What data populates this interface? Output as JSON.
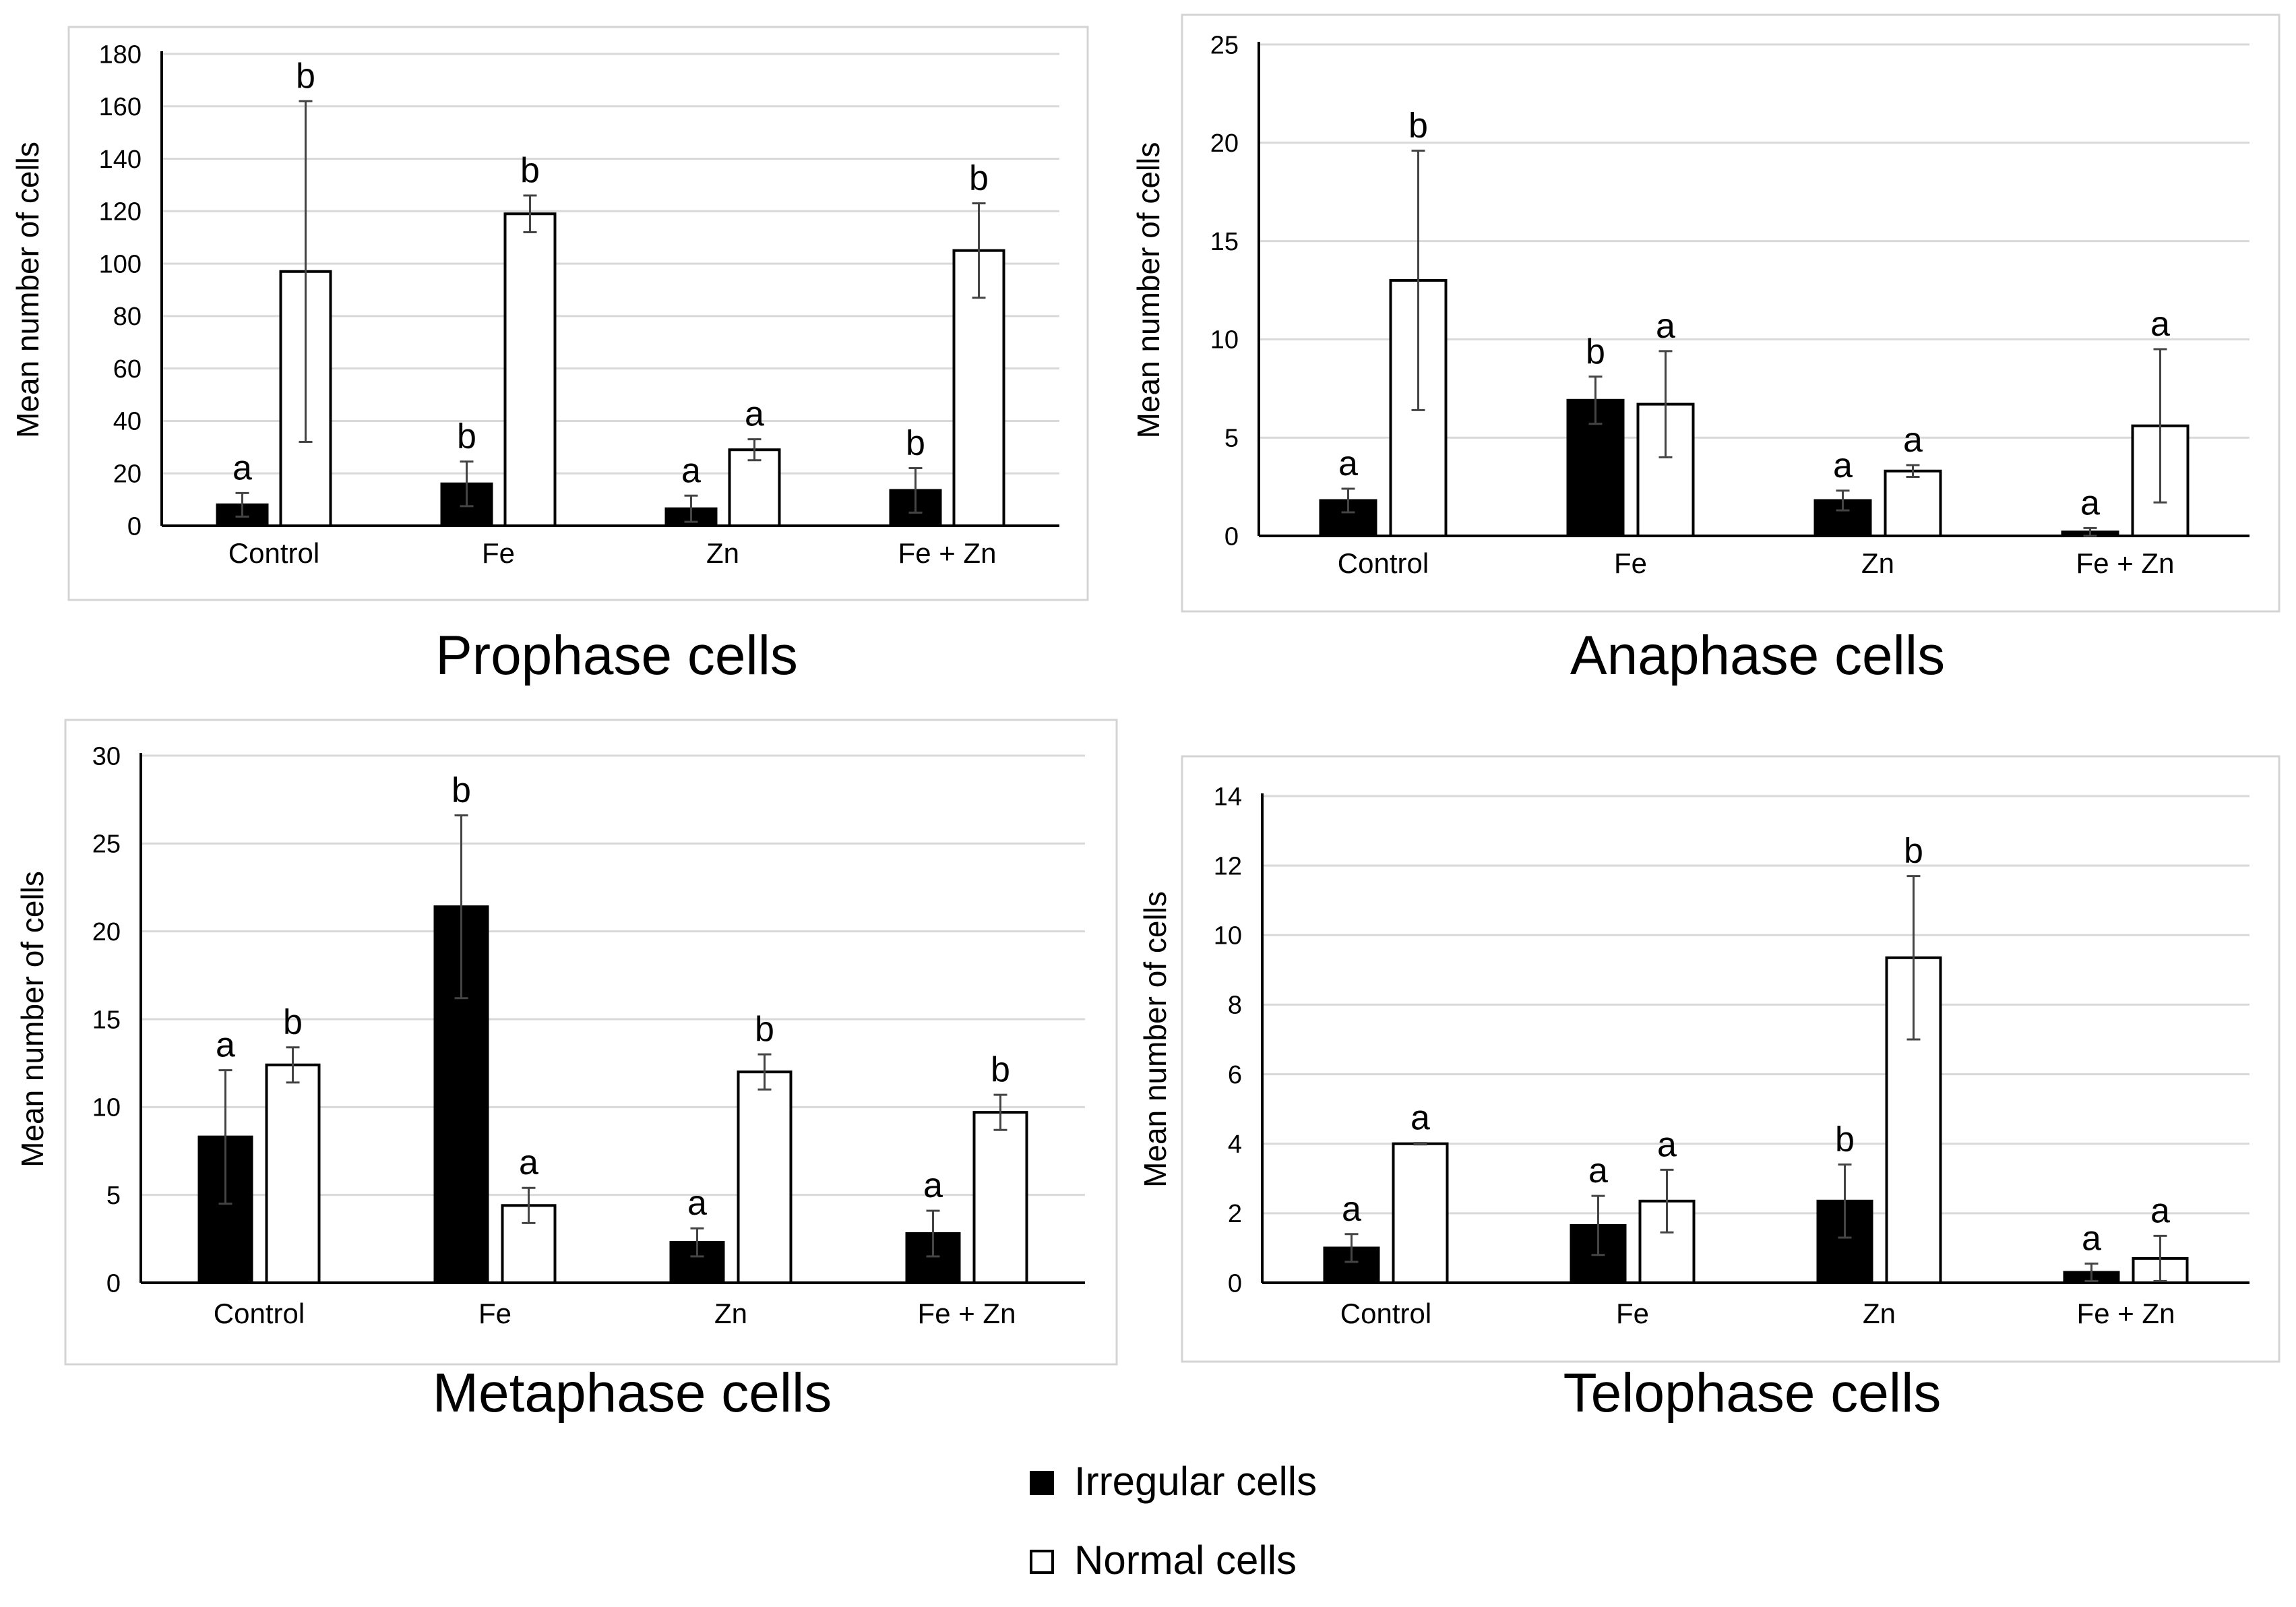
{
  "legend": {
    "items": [
      {
        "label": "Irregular cells",
        "color": "#000000"
      },
      {
        "label": "Normal cells",
        "color": "#ffffff"
      }
    ]
  },
  "chart_data": [
    {
      "type": "bar",
      "title": "Prophase cells",
      "ylabel": "Mean number of cells",
      "xlabel": "",
      "categories": [
        "Control",
        "Fe",
        "Zn",
        "Fe + Zn"
      ],
      "ylim": [
        0,
        180
      ],
      "yticks": [
        0,
        20,
        40,
        60,
        80,
        100,
        120,
        140,
        160,
        180
      ],
      "series": [
        {
          "name": "Irregular cells",
          "values": [
            8,
            16,
            6.5,
            13.5
          ],
          "errors": [
            4.5,
            8.5,
            5,
            8.5
          ],
          "labels": [
            "a",
            "b",
            "a",
            "b"
          ]
        },
        {
          "name": "Normal cells",
          "values": [
            97,
            119,
            29,
            105
          ],
          "errors": [
            65,
            7,
            4,
            18
          ],
          "labels": [
            "b",
            "b",
            "a",
            "b"
          ]
        }
      ]
    },
    {
      "type": "bar",
      "title": "Anaphase cells",
      "ylabel": "Mean number of cells",
      "xlabel": "",
      "categories": [
        "Control",
        "Fe",
        "Zn",
        "Fe + Zn"
      ],
      "ylim": [
        0,
        25
      ],
      "yticks": [
        0,
        5,
        10,
        15,
        20,
        25
      ],
      "series": [
        {
          "name": "Irregular cells",
          "values": [
            1.8,
            6.9,
            1.8,
            0.2
          ],
          "errors": [
            0.6,
            1.2,
            0.5,
            0.2
          ],
          "labels": [
            "a",
            "b",
            "a",
            "a"
          ]
        },
        {
          "name": "Normal cells",
          "values": [
            13,
            6.7,
            3.3,
            5.6
          ],
          "errors": [
            6.6,
            2.7,
            0.3,
            3.9
          ],
          "labels": [
            "b",
            "a",
            "a",
            "a"
          ]
        }
      ]
    },
    {
      "type": "bar",
      "title": "Metaphase cells",
      "ylabel": "Mean number of cells",
      "xlabel": "",
      "categories": [
        "Control",
        "Fe",
        "Zn",
        "Fe + Zn"
      ],
      "ylim": [
        0,
        30
      ],
      "yticks": [
        0,
        5,
        10,
        15,
        20,
        25,
        30
      ],
      "series": [
        {
          "name": "Irregular cells",
          "values": [
            8.3,
            21.4,
            2.3,
            2.8
          ],
          "errors": [
            3.8,
            5.2,
            0.8,
            1.3
          ],
          "labels": [
            "a",
            "b",
            "a",
            "a"
          ]
        },
        {
          "name": "Normal cells",
          "values": [
            12.4,
            4.4,
            12,
            9.7
          ],
          "errors": [
            1,
            1,
            1,
            1
          ],
          "labels": [
            "b",
            "a",
            "b",
            "b"
          ]
        }
      ]
    },
    {
      "type": "bar",
      "title": "Telophase cells",
      "ylabel": "Mean number of cells",
      "xlabel": "",
      "categories": [
        "Control",
        "Fe",
        "Zn",
        "Fe + Zn"
      ],
      "ylim": [
        0,
        14
      ],
      "yticks": [
        0,
        2,
        4,
        6,
        8,
        10,
        12,
        14
      ],
      "series": [
        {
          "name": "Irregular cells",
          "values": [
            1,
            1.65,
            2.35,
            0.3
          ],
          "errors": [
            0.4,
            0.85,
            1.05,
            0.25
          ],
          "labels": [
            "a",
            "a",
            "b",
            "a"
          ]
        },
        {
          "name": "Normal cells",
          "values": [
            4,
            2.35,
            9.35,
            0.7
          ],
          "errors": [
            0.02,
            0.9,
            2.35,
            0.65
          ],
          "labels": [
            "a",
            "a",
            "b",
            "a"
          ]
        }
      ]
    }
  ]
}
